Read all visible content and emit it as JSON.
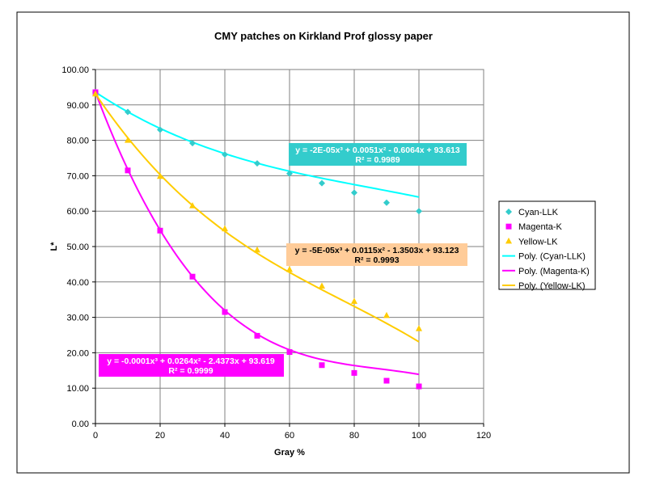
{
  "chart_data": {
    "type": "scatter",
    "title": "CMY patches on Kirkland Prof glossy paper",
    "xlabel": "Gray %",
    "ylabel": "L*",
    "xlim": [
      0,
      120
    ],
    "ylim": [
      0,
      100
    ],
    "x_ticks": [
      "0",
      "20",
      "40",
      "60",
      "80",
      "100",
      "120"
    ],
    "y_ticks": [
      "0.00",
      "10.00",
      "20.00",
      "30.00",
      "40.00",
      "50.00",
      "60.00",
      "70.00",
      "80.00",
      "90.00",
      "100.00"
    ],
    "grid": "horizontal and vertical",
    "legend_position": "right",
    "series": [
      {
        "name": "Cyan-LLK",
        "marker": "diamond",
        "color": "#33CCCC",
        "x": [
          0,
          10,
          20,
          30,
          40,
          50,
          60,
          70,
          80,
          90,
          100
        ],
        "y": [
          93.6,
          88.0,
          83.0,
          79.2,
          76.0,
          73.5,
          70.6,
          67.9,
          65.2,
          62.4,
          60.0
        ]
      },
      {
        "name": "Magenta-K",
        "marker": "square",
        "color": "#FF00FF",
        "x": [
          0,
          10,
          20,
          30,
          40,
          50,
          60,
          70,
          80,
          90,
          100
        ],
        "y": [
          93.6,
          71.5,
          54.5,
          41.5,
          31.5,
          24.8,
          20.2,
          16.5,
          14.3,
          12.1,
          10.5
        ]
      },
      {
        "name": "Yellow-LK",
        "marker": "triangle",
        "color": "#FFCC00",
        "x": [
          0,
          10,
          20,
          30,
          40,
          50,
          60,
          70,
          80,
          90,
          100
        ],
        "y": [
          93.1,
          80.0,
          69.8,
          61.5,
          55.0,
          49.0,
          43.5,
          38.8,
          34.5,
          30.5,
          26.8
        ]
      }
    ],
    "trendlines": [
      {
        "name": "Poly. (Cyan-LLK)",
        "color": "#00FFFF",
        "coefficients": [
          -2e-05,
          0.0051,
          -0.6064,
          93.613
        ],
        "equation_line1": "y = -2E-05x³ + 0.0051x² - 0.6064x + 93.613",
        "equation_line2": "R² = 0.9989",
        "label_bg": "#33CCCC",
        "label_fg": "#ffffff"
      },
      {
        "name": "Poly. (Magenta-K)",
        "color": "#FF00FF",
        "coefficients": [
          -0.0001,
          0.0264,
          -2.4373,
          93.619
        ],
        "equation_line1": "y = -0.0001x³ + 0.0264x² - 2.4373x + 93.619",
        "equation_line2": "R² = 0.9999",
        "label_bg": "#FF00FF",
        "label_fg": "#ffffff"
      },
      {
        "name": "Poly. (Yellow-LK)",
        "color": "#FFCC00",
        "coefficients": [
          -5e-05,
          0.0115,
          -1.3503,
          93.123
        ],
        "equation_line1": "y = -5E-05x³ + 0.0115x² - 1.3503x + 93.123",
        "equation_line2": "R² = 0.9993",
        "label_bg": "#FFCC99",
        "label_fg": "#000000"
      }
    ]
  }
}
